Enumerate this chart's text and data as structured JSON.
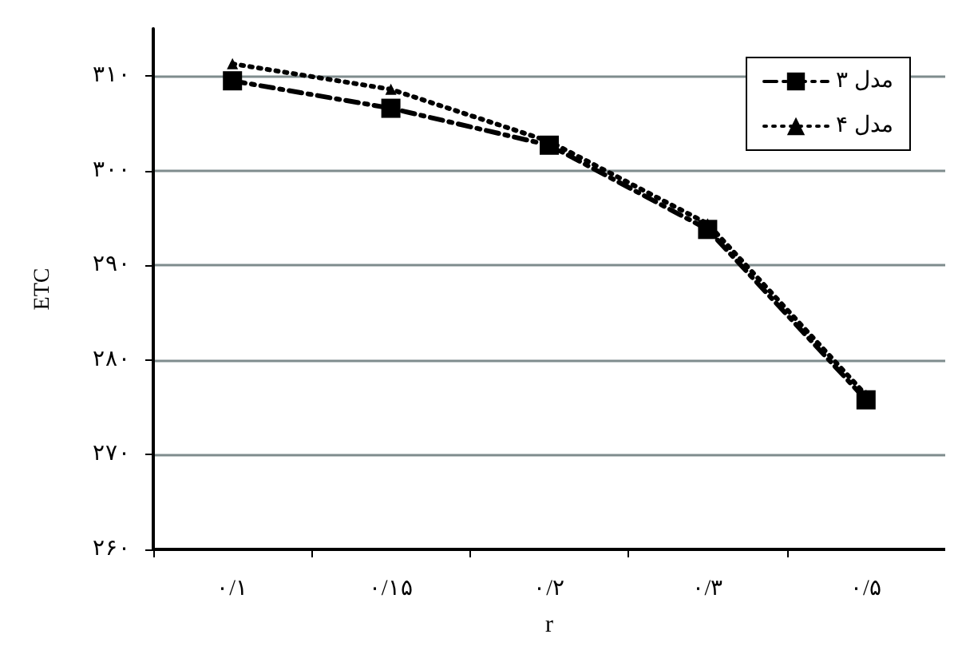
{
  "chart_data": {
    "type": "line",
    "xlabel": "r",
    "ylabel": "ETC",
    "categories": [
      "۰/۱",
      "۰/۱۵",
      "۰/۲",
      "۰/۳",
      "۰/۵"
    ],
    "series": [
      {
        "name": "مدل ۳",
        "color": "#000000",
        "marker": "square",
        "line_style": "dashed",
        "values": [
          309.5,
          306.6,
          302.7,
          293.8,
          275.8
        ]
      },
      {
        "name": "مدل ۴",
        "color": "#000000",
        "marker": "triangle",
        "line_style": "dotted",
        "values": [
          311.3,
          308.6,
          303.1,
          294.4,
          276.3
        ]
      }
    ],
    "ylim": [
      260,
      315
    ],
    "yticks": [
      {
        "value": 260,
        "label": "۲۶۰"
      },
      {
        "value": 270,
        "label": "۲۷۰"
      },
      {
        "value": 280,
        "label": "۲۸۰"
      },
      {
        "value": 290,
        "label": "۲۹۰"
      },
      {
        "value": 300,
        "label": "۳۰۰"
      },
      {
        "value": 310,
        "label": "۳۱۰"
      }
    ],
    "grid": "y",
    "legend": "top right"
  }
}
